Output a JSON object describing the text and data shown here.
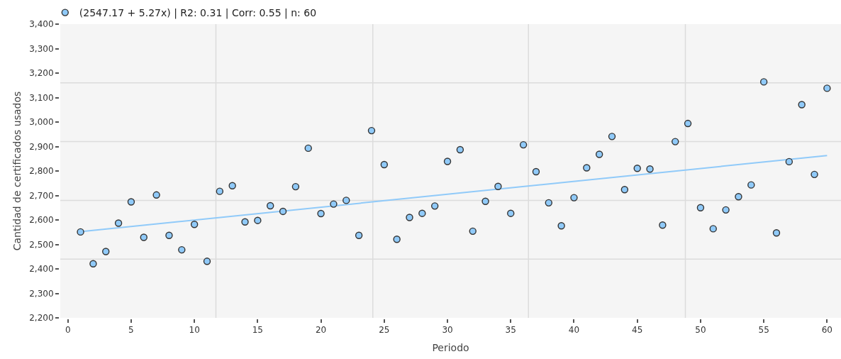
{
  "chart_data": {
    "type": "scatter",
    "xlabel": "Periodo",
    "ylabel": "Cantidad de certificados usados",
    "x": [
      1,
      2,
      3,
      4,
      5,
      6,
      7,
      8,
      9,
      10,
      11,
      12,
      13,
      14,
      15,
      16,
      17,
      18,
      19,
      20,
      21,
      22,
      23,
      24,
      25,
      26,
      27,
      28,
      29,
      30,
      31,
      32,
      33,
      34,
      35,
      36,
      37,
      38,
      39,
      40,
      41,
      42,
      43,
      44,
      45,
      46,
      47,
      48,
      49,
      50,
      51,
      52,
      53,
      54,
      55,
      56,
      57,
      58,
      59,
      60
    ],
    "series": [
      {
        "name": "(2547.17 + 5.27x) | R2: 0.31 | Corr: 0.55 | n: 60",
        "color": "#90caf9",
        "marker": "circle",
        "values": [
          2551,
          2421,
          2471,
          2587,
          2674,
          2529,
          2702,
          2537,
          2478,
          2582,
          2431,
          2717,
          2740,
          2592,
          2598,
          2658,
          2635,
          2736,
          2893,
          2626,
          2665,
          2680,
          2537,
          2965,
          2826,
          2521,
          2610,
          2627,
          2657,
          2839,
          2887,
          2554,
          2676,
          2737,
          2627,
          2907,
          2797,
          2670,
          2576,
          2691,
          2813,
          2868,
          2941,
          2724,
          2811,
          2808,
          2579,
          2920,
          2994,
          2650,
          2564,
          2641,
          2695,
          2743,
          3164,
          2547,
          2838,
          3071,
          2786,
          3138
        ]
      },
      {
        "type": "line",
        "color": "#90caf9",
        "x": [
          1,
          60
        ],
        "values": [
          2552,
          2863
        ]
      }
    ],
    "xlim": [
      -0.6,
      61.1
    ],
    "ylim": [
      2200,
      3400
    ],
    "xticks": [
      0,
      5,
      10,
      15,
      20,
      25,
      30,
      35,
      40,
      45,
      50,
      55,
      60
    ],
    "yticks": [
      {
        "value": 2200,
        "label": "2,200"
      },
      {
        "value": 2300,
        "label": "2,300"
      },
      {
        "value": 2400,
        "label": "2,400"
      },
      {
        "value": 2500,
        "label": "2,500"
      },
      {
        "value": 2600,
        "label": "2,600"
      },
      {
        "value": 2700,
        "label": "2,700"
      },
      {
        "value": 2800,
        "label": "2,800"
      },
      {
        "value": 2900,
        "label": "2,900"
      },
      {
        "value": 3000,
        "label": "3,000"
      },
      {
        "value": 3100,
        "label": "3,100"
      },
      {
        "value": 3200,
        "label": "3,200"
      },
      {
        "value": 3300,
        "label": "3,300"
      },
      {
        "value": 3400,
        "label": "3,400"
      }
    ],
    "ref_lines": [
      {
        "axis": "y",
        "value": 2440,
        "color": "#dcdcdc"
      },
      {
        "axis": "y",
        "value": 2680,
        "color": "#dcdcdc"
      },
      {
        "axis": "y",
        "value": 2920,
        "color": "#dcdcdc"
      },
      {
        "axis": "y",
        "value": 3160,
        "color": "#dcdcdc"
      },
      {
        "axis": "x",
        "value": 11.7,
        "color": "#dcdcdc"
      },
      {
        "axis": "x",
        "value": 24.1,
        "color": "#dcdcdc"
      },
      {
        "axis": "x",
        "value": 36.4,
        "color": "#dcdcdc"
      },
      {
        "axis": "x",
        "value": 48.8,
        "color": "#dcdcdc"
      }
    ],
    "legend": "top left",
    "grid": false
  }
}
